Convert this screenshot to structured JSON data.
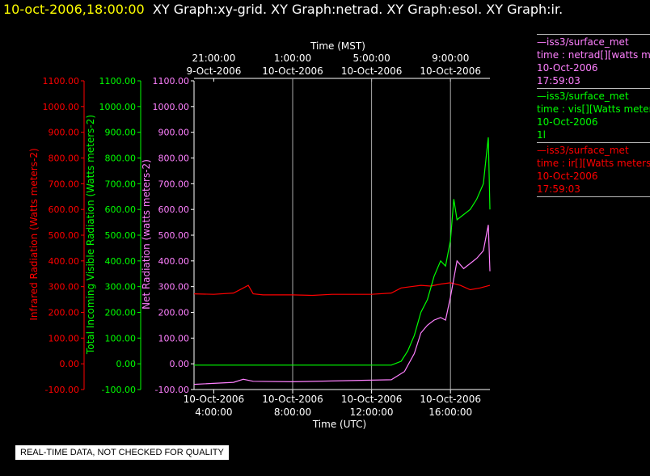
{
  "header": {
    "timestamp": "10-oct-2006,18:00:00",
    "graphs": "XY Graph:xy-grid.  XY Graph:netrad.  XY Graph:esol.  XY Graph:ir."
  },
  "legend": [
    {
      "lines": [
        "—iss3/surface_met",
        "time : netrad[][watts met",
        "10-Oct-2006",
        "17:59:03"
      ],
      "color": "#ff80ff"
    },
    {
      "lines": [
        "—iss3/surface_met",
        "time : vis[][Watts meter",
        "10-Oct-2006",
        "1l"
      ],
      "color": "#00ff00"
    },
    {
      "lines": [
        "—iss3/surface_met",
        "time : ir[][Watts meters",
        "10-Oct-2006",
        "17:59:03"
      ],
      "color": "#ff0000"
    }
  ],
  "notice": "REAL-TIME DATA, NOT CHECKED FOR QUALITY",
  "chart_data": {
    "type": "line",
    "xlabel": "Time (UTC)",
    "x2label": "Time (MST)",
    "x_ticks": [
      {
        "date": "10-Oct-2006",
        "time": "4:00:00"
      },
      {
        "date": "10-Oct-2006",
        "time": "8:00:00"
      },
      {
        "date": "10-Oct-2006",
        "time": "12:00:00"
      },
      {
        "date": "10-Oct-2006",
        "time": "16:00:00"
      }
    ],
    "x2_ticks": [
      {
        "time": "21:00:00",
        "date": "9-Oct-2006"
      },
      {
        "time": "1:00:00",
        "date": "10-Oct-2006"
      },
      {
        "time": "5:00:00",
        "date": "10-Oct-2006"
      },
      {
        "time": "9:00:00",
        "date": "10-Oct-2006"
      }
    ],
    "y_ticks": [
      "1100.00",
      "1000.00",
      "900.00",
      "800.00",
      "700.00",
      "600.00",
      "500.00",
      "400.00",
      "300.00",
      "200.00",
      "100.00",
      "0.00",
      "-100.00"
    ],
    "xlim": [
      "10-Oct-2006 03:00",
      "10-Oct-2006 18:00"
    ],
    "ylim": [
      -100,
      1100
    ],
    "axes": [
      {
        "label": "Infrared Radiation (Watts meters-2)",
        "color": "#ff0000"
      },
      {
        "label": "Total Incoming Visible Radiation (Watts meters-2)",
        "color": "#00ff00"
      },
      {
        "label": "Net Radiation (watts meters-2)",
        "color": "#ff80ff"
      }
    ],
    "series": [
      {
        "color": "#ff0000",
        "x": [
          "10-Oct-2006 03:00",
          "10-Oct-2006 04:00",
          "10-Oct-2006 05:00",
          "10-Oct-2006 05:30",
          "10-Oct-2006 05:45",
          "10-Oct-2006 06:00",
          "10-Oct-2006 06:30",
          "10-Oct-2006 07:00",
          "10-Oct-2006 08:00",
          "10-Oct-2006 09:00",
          "10-Oct-2006 10:00",
          "10-Oct-2006 11:00",
          "10-Oct-2006 12:00",
          "10-Oct-2006 13:00",
          "10-Oct-2006 13:30",
          "10-Oct-2006 14:00",
          "10-Oct-2006 14:30",
          "10-Oct-2006 15:00",
          "10-Oct-2006 15:30",
          "10-Oct-2006 16:00",
          "10-Oct-2006 16:30",
          "10-Oct-2006 17:00",
          "10-Oct-2006 17:30",
          "10-Oct-2006 18:00"
        ],
        "y": [
          272,
          270,
          275,
          295,
          305,
          272,
          268,
          268,
          268,
          266,
          270,
          270,
          270,
          275,
          295,
          300,
          305,
          302,
          310,
          315,
          305,
          288,
          295,
          305
        ]
      },
      {
        "color": "#00ff00",
        "x": [
          "10-Oct-2006 03:00",
          "10-Oct-2006 05:00",
          "10-Oct-2006 08:00",
          "10-Oct-2006 11:00",
          "10-Oct-2006 13:00",
          "10-Oct-2006 13:30",
          "10-Oct-2006 13:50",
          "10-Oct-2006 14:10",
          "10-Oct-2006 14:30",
          "10-Oct-2006 14:50",
          "10-Oct-2006 15:10",
          "10-Oct-2006 15:30",
          "10-Oct-2006 15:45",
          "10-Oct-2006 16:00",
          "10-Oct-2006 16:10",
          "10-Oct-2006 16:20",
          "10-Oct-2006 16:40",
          "10-Oct-2006 17:00",
          "10-Oct-2006 17:20",
          "10-Oct-2006 17:40",
          "10-Oct-2006 17:50",
          "10-Oct-2006 17:55",
          "10-Oct-2006 18:00"
        ],
        "y": [
          -5,
          -5,
          -5,
          -5,
          -5,
          10,
          50,
          110,
          200,
          250,
          340,
          400,
          380,
          480,
          640,
          560,
          580,
          600,
          640,
          700,
          820,
          880,
          600
        ]
      },
      {
        "color": "#ff80ff",
        "x": [
          "10-Oct-2006 03:00",
          "10-Oct-2006 05:00",
          "10-Oct-2006 05:30",
          "10-Oct-2006 06:00",
          "10-Oct-2006 08:00",
          "10-Oct-2006 11:00",
          "10-Oct-2006 13:00",
          "10-Oct-2006 13:40",
          "10-Oct-2006 14:10",
          "10-Oct-2006 14:30",
          "10-Oct-2006 14:50",
          "10-Oct-2006 15:10",
          "10-Oct-2006 15:30",
          "10-Oct-2006 15:45",
          "10-Oct-2006 16:00",
          "10-Oct-2006 16:20",
          "10-Oct-2006 16:40",
          "10-Oct-2006 17:00",
          "10-Oct-2006 17:20",
          "10-Oct-2006 17:40",
          "10-Oct-2006 17:55",
          "10-Oct-2006 18:00"
        ],
        "y": [
          -80,
          -72,
          -60,
          -68,
          -70,
          -65,
          -62,
          -30,
          40,
          120,
          150,
          170,
          180,
          170,
          260,
          400,
          370,
          390,
          410,
          440,
          540,
          360
        ]
      }
    ]
  }
}
